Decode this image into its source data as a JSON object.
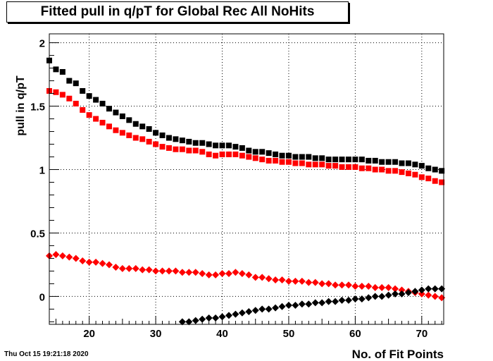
{
  "chart_data": {
    "type": "scatter",
    "title": "Fitted pull in q/pT for Global Rec All NoHits",
    "xlabel": "No. of Fit Points",
    "ylabel": "pull in q/pT",
    "xlim": [
      14,
      73.3
    ],
    "ylim": [
      -0.22,
      2.07
    ],
    "xticks": [
      20,
      30,
      40,
      50,
      60,
      70
    ],
    "yticks": [
      0,
      0.5,
      1,
      1.5,
      2
    ],
    "grid": true,
    "series": [
      {
        "marker": "square",
        "color": "#000000",
        "x": [
          14,
          15,
          16,
          17,
          18,
          19,
          20,
          21,
          22,
          23,
          24,
          25,
          26,
          27,
          28,
          29,
          30,
          31,
          32,
          33,
          34,
          35,
          36,
          37,
          38,
          39,
          40,
          41,
          42,
          43,
          44,
          45,
          46,
          47,
          48,
          49,
          50,
          51,
          52,
          53,
          54,
          55,
          56,
          57,
          58,
          59,
          60,
          61,
          62,
          63,
          64,
          65,
          66,
          67,
          68,
          69,
          70,
          71,
          72,
          73
        ],
        "y": [
          1.86,
          1.79,
          1.77,
          1.7,
          1.68,
          1.62,
          1.58,
          1.55,
          1.52,
          1.48,
          1.45,
          1.42,
          1.39,
          1.36,
          1.34,
          1.32,
          1.29,
          1.27,
          1.25,
          1.24,
          1.23,
          1.22,
          1.21,
          1.21,
          1.2,
          1.19,
          1.19,
          1.19,
          1.18,
          1.17,
          1.15,
          1.14,
          1.14,
          1.13,
          1.12,
          1.11,
          1.11,
          1.1,
          1.1,
          1.1,
          1.09,
          1.09,
          1.08,
          1.08,
          1.08,
          1.08,
          1.08,
          1.08,
          1.07,
          1.07,
          1.06,
          1.06,
          1.06,
          1.05,
          1.05,
          1.04,
          1.03,
          1.01,
          1.0,
          0.99
        ]
      },
      {
        "marker": "square",
        "color": "#ff0000",
        "x": [
          14,
          15,
          16,
          17,
          18,
          19,
          20,
          21,
          22,
          23,
          24,
          25,
          26,
          27,
          28,
          29,
          30,
          31,
          32,
          33,
          34,
          35,
          36,
          37,
          38,
          39,
          40,
          41,
          42,
          43,
          44,
          45,
          46,
          47,
          48,
          49,
          50,
          51,
          52,
          53,
          54,
          55,
          56,
          57,
          58,
          59,
          60,
          61,
          62,
          63,
          64,
          65,
          66,
          67,
          68,
          69,
          70,
          71,
          72,
          73
        ],
        "y": [
          1.62,
          1.61,
          1.59,
          1.56,
          1.52,
          1.47,
          1.43,
          1.4,
          1.37,
          1.34,
          1.31,
          1.29,
          1.27,
          1.25,
          1.24,
          1.22,
          1.2,
          1.18,
          1.17,
          1.16,
          1.16,
          1.15,
          1.15,
          1.14,
          1.12,
          1.11,
          1.12,
          1.12,
          1.12,
          1.11,
          1.1,
          1.09,
          1.08,
          1.07,
          1.07,
          1.06,
          1.06,
          1.05,
          1.05,
          1.04,
          1.04,
          1.04,
          1.03,
          1.03,
          1.02,
          1.02,
          1.02,
          1.01,
          1.01,
          1.0,
          1.0,
          0.99,
          0.99,
          0.98,
          0.97,
          0.96,
          0.94,
          0.93,
          0.91,
          0.9
        ]
      },
      {
        "marker": "diamond",
        "color": "#ff0000",
        "x": [
          14,
          15,
          16,
          17,
          18,
          19,
          20,
          21,
          22,
          23,
          24,
          25,
          26,
          27,
          28,
          29,
          30,
          31,
          32,
          33,
          34,
          35,
          36,
          37,
          38,
          39,
          40,
          41,
          42,
          43,
          44,
          45,
          46,
          47,
          48,
          49,
          50,
          51,
          52,
          53,
          54,
          55,
          56,
          57,
          58,
          59,
          60,
          61,
          62,
          63,
          64,
          65,
          66,
          67,
          68,
          69,
          70,
          71,
          72,
          73
        ],
        "y": [
          0.32,
          0.33,
          0.32,
          0.31,
          0.3,
          0.28,
          0.27,
          0.27,
          0.26,
          0.25,
          0.23,
          0.22,
          0.22,
          0.22,
          0.21,
          0.21,
          0.2,
          0.2,
          0.2,
          0.2,
          0.19,
          0.19,
          0.19,
          0.18,
          0.17,
          0.17,
          0.18,
          0.18,
          0.19,
          0.18,
          0.17,
          0.15,
          0.15,
          0.14,
          0.13,
          0.13,
          0.12,
          0.12,
          0.12,
          0.11,
          0.11,
          0.1,
          0.1,
          0.09,
          0.09,
          0.09,
          0.08,
          0.08,
          0.08,
          0.07,
          0.07,
          0.07,
          0.06,
          0.05,
          0.04,
          0.03,
          0.02,
          0.01,
          0.0,
          -0.01
        ]
      },
      {
        "marker": "diamond",
        "color": "#000000",
        "x": [
          34,
          35,
          36,
          37,
          38,
          39,
          40,
          41,
          42,
          43,
          44,
          45,
          46,
          47,
          48,
          49,
          50,
          51,
          52,
          53,
          54,
          55,
          56,
          57,
          58,
          59,
          60,
          61,
          62,
          63,
          64,
          65,
          66,
          67,
          68,
          69,
          70,
          71,
          72,
          73
        ],
        "y": [
          -0.2,
          -0.2,
          -0.19,
          -0.18,
          -0.17,
          -0.17,
          -0.16,
          -0.15,
          -0.14,
          -0.13,
          -0.12,
          -0.11,
          -0.1,
          -0.1,
          -0.09,
          -0.08,
          -0.07,
          -0.07,
          -0.06,
          -0.06,
          -0.05,
          -0.05,
          -0.04,
          -0.04,
          -0.03,
          -0.03,
          -0.02,
          -0.02,
          -0.01,
          0.0,
          0.0,
          0.01,
          0.02,
          0.02,
          0.03,
          0.04,
          0.05,
          0.06,
          0.06,
          0.06
        ]
      }
    ]
  },
  "footer": {
    "timestamp": "Thu Oct 15 19:21:18 2020"
  }
}
